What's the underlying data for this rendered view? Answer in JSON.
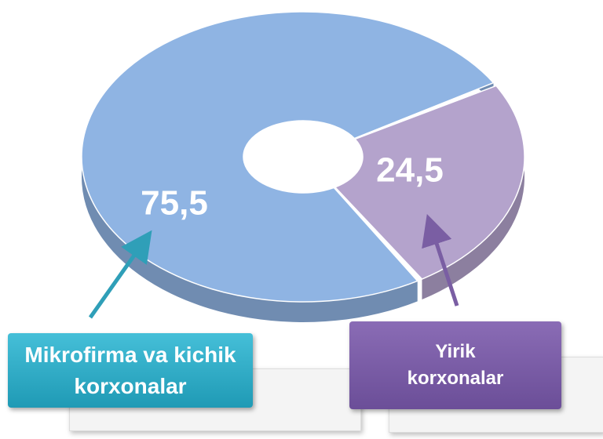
{
  "chart_data": {
    "type": "pie",
    "categories": [
      "Mikrofirma va kichik korxonalar",
      "Yirik korxonalar"
    ],
    "values": [
      75.5,
      24.5
    ],
    "value_labels": [
      "75,5",
      "24,5"
    ],
    "colors": [
      "#8fb4e3",
      "#b4a3cc"
    ]
  }
}
